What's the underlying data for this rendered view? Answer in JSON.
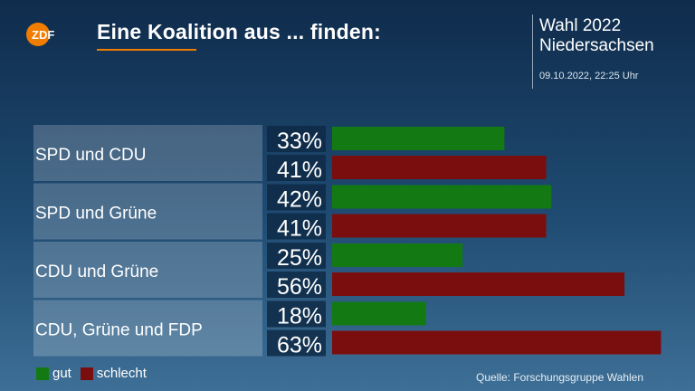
{
  "header": {
    "logo_text": "ZDF",
    "title": "Eine Koalition aus ... finden:",
    "event_line1": "Wahl 2022",
    "event_line2": "Niedersachsen",
    "timestamp": "09.10.2022, 22:25 Uhr"
  },
  "colors": {
    "gut": "#137a13",
    "schlecht": "#7a0e0e",
    "accent": "#f07d00"
  },
  "legend": {
    "gut": "gut",
    "schlecht": "schlecht"
  },
  "source": "Quelle: Forschungsgruppe Wahlen",
  "chart_data": {
    "type": "bar",
    "orientation": "horizontal",
    "categories": [
      "SPD und CDU",
      "SPD und Grüne",
      "CDU und Grüne",
      "CDU, Grüne und FDP"
    ],
    "series": [
      {
        "name": "gut",
        "values": [
          33,
          42,
          25,
          18
        ]
      },
      {
        "name": "schlecht",
        "values": [
          41,
          41,
          56,
          63
        ]
      }
    ],
    "value_labels": [
      [
        "33%",
        "41%"
      ],
      [
        "42%",
        "41%"
      ],
      [
        "25%",
        "56%"
      ],
      [
        "18%",
        "63%"
      ]
    ],
    "xlim": [
      0,
      65
    ],
    "unit": "%",
    "grid": false,
    "legend_position": "bottom-left"
  }
}
